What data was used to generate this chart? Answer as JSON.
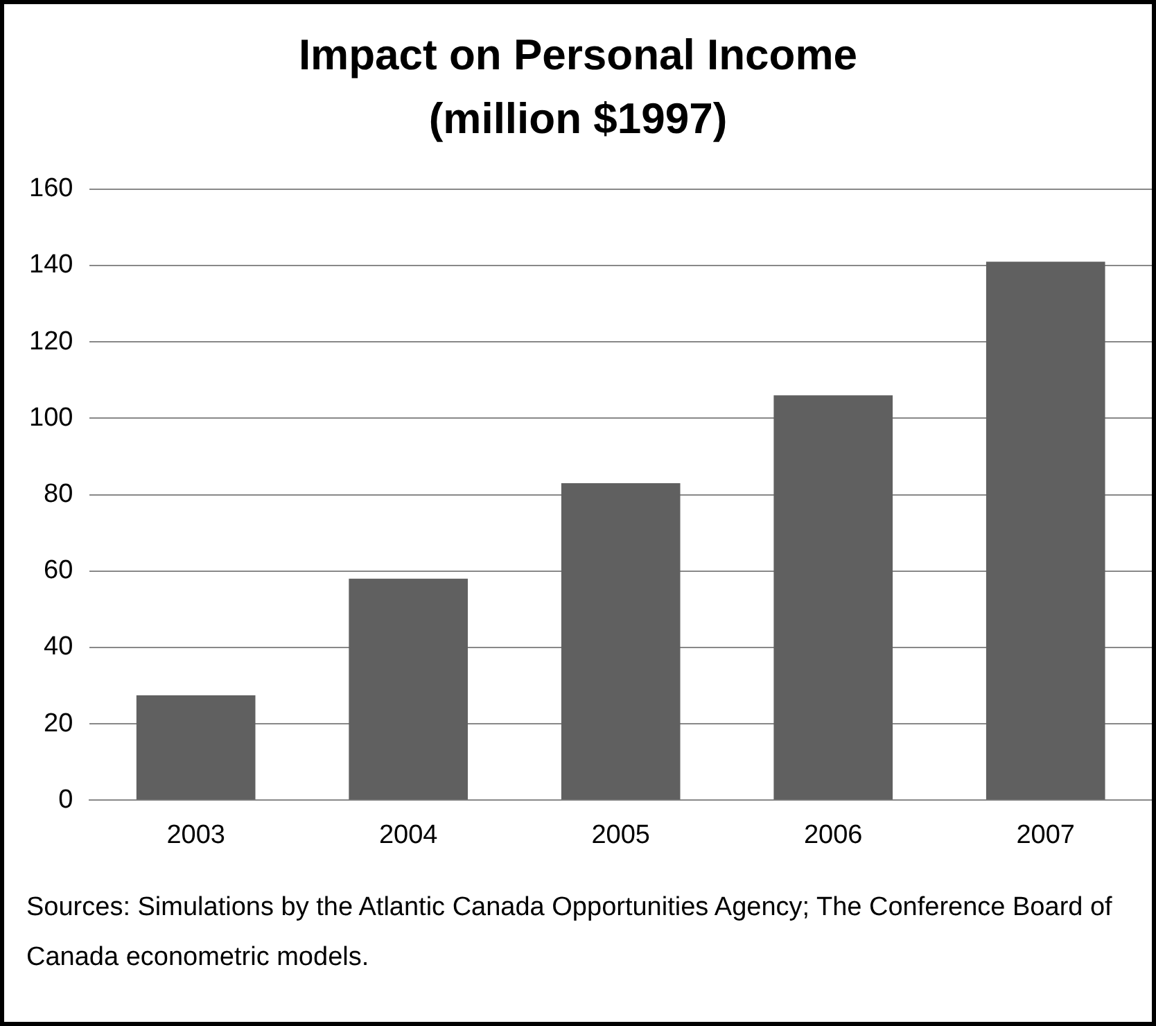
{
  "chart_data": {
    "type": "bar",
    "title": "Impact on Personal Income (million $1997)",
    "categories": [
      "2003",
      "2004",
      "2005",
      "2006",
      "2007"
    ],
    "values": [
      27.5,
      58,
      83,
      106,
      141
    ],
    "color": "#606060",
    "ylim": [
      0,
      160
    ],
    "yticks": [
      0,
      20,
      40,
      60,
      80,
      100,
      120,
      140,
      160
    ],
    "grid": "y",
    "legend": false,
    "annotations": [
      "Sources: Simulations by the Atlantic Canada Opportunities Agency; The Conference Board of Canada econometric models."
    ]
  }
}
